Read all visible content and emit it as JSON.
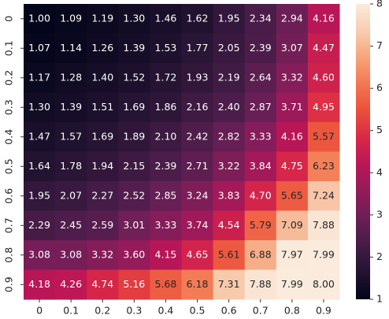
{
  "chart_data": {
    "type": "heatmap",
    "x_categories": [
      "0",
      "0.1",
      "0.2",
      "0.3",
      "0.4",
      "0.5",
      "0.6",
      "0.7",
      "0.8",
      "0.9"
    ],
    "y_categories": [
      "0",
      "0.1",
      "0.2",
      "0.3",
      "0.4",
      "0.5",
      "0.6",
      "0.7",
      "0.8",
      "0.9"
    ],
    "values": [
      [
        1.0,
        1.09,
        1.19,
        1.3,
        1.46,
        1.62,
        1.95,
        2.34,
        2.94,
        4.16
      ],
      [
        1.07,
        1.14,
        1.26,
        1.39,
        1.53,
        1.77,
        2.05,
        2.39,
        3.07,
        4.47
      ],
      [
        1.17,
        1.28,
        1.4,
        1.52,
        1.72,
        1.93,
        2.19,
        2.64,
        3.32,
        4.6
      ],
      [
        1.3,
        1.39,
        1.51,
        1.69,
        1.86,
        2.16,
        2.4,
        2.87,
        3.71,
        4.95
      ],
      [
        1.47,
        1.57,
        1.69,
        1.89,
        2.1,
        2.42,
        2.82,
        3.33,
        4.16,
        5.57
      ],
      [
        1.64,
        1.78,
        1.94,
        2.15,
        2.39,
        2.71,
        3.22,
        3.84,
        4.75,
        6.23
      ],
      [
        1.95,
        2.07,
        2.27,
        2.52,
        2.85,
        3.24,
        3.83,
        4.7,
        5.65,
        7.24
      ],
      [
        2.29,
        2.45,
        2.59,
        3.01,
        3.33,
        3.74,
        4.54,
        5.79,
        7.09,
        7.88
      ],
      [
        3.08,
        3.08,
        3.32,
        3.6,
        4.15,
        4.65,
        5.61,
        6.88,
        7.97,
        7.99
      ],
      [
        4.18,
        4.26,
        4.74,
        5.16,
        5.68,
        6.18,
        7.31,
        7.88,
        7.99,
        8.0
      ]
    ],
    "value_labels": [
      [
        "1.00",
        "1.09",
        "1.19",
        "1.30",
        "1.46",
        "1.62",
        "1.95",
        "2.34",
        "2.94",
        "4.16"
      ],
      [
        "1.07",
        "1.14",
        "1.26",
        "1.39",
        "1.53",
        "1.77",
        "2.05",
        "2.39",
        "3.07",
        "4.47"
      ],
      [
        "1.17",
        "1.28",
        "1.40",
        "1.52",
        "1.72",
        "1.93",
        "2.19",
        "2.64",
        "3.32",
        "4.60"
      ],
      [
        "1.30",
        "1.39",
        "1.51",
        "1.69",
        "1.86",
        "2.16",
        "2.40",
        "2.87",
        "3.71",
        "4.95"
      ],
      [
        "1.47",
        "1.57",
        "1.69",
        "1.89",
        "2.10",
        "2.42",
        "2.82",
        "3.33",
        "4.16",
        "5.57"
      ],
      [
        "1.64",
        "1.78",
        "1.94",
        "2.15",
        "2.39",
        "2.71",
        "3.22",
        "3.84",
        "4.75",
        "6.23"
      ],
      [
        "1.95",
        "2.07",
        "2.27",
        "2.52",
        "2.85",
        "3.24",
        "3.83",
        "4.70",
        "5.65",
        "7.24"
      ],
      [
        "2.29",
        "2.45",
        "2.59",
        "3.01",
        "3.33",
        "3.74",
        "4.54",
        "5.79",
        "7.09",
        "7.88"
      ],
      [
        "3.08",
        "3.08",
        "3.32",
        "3.60",
        "4.15",
        "4.65",
        "5.61",
        "6.88",
        "7.97",
        "7.99"
      ],
      [
        "4.18",
        "4.26",
        "4.74",
        "5.16",
        "5.68",
        "6.18",
        "7.31",
        "7.88",
        "7.99",
        "8.00"
      ]
    ],
    "clim": [
      1,
      8
    ],
    "colorbar_ticks": [
      1,
      2,
      3,
      4,
      5,
      6,
      7,
      8
    ],
    "colormap": [
      "#03051a",
      "#221331",
      "#451c47",
      "#6a1f56",
      "#921c5b",
      "#b91657",
      "#d92847",
      "#ea4f3b",
      "#f37651",
      "#f6a47b",
      "#f8cdb0",
      "#faebdd"
    ]
  }
}
